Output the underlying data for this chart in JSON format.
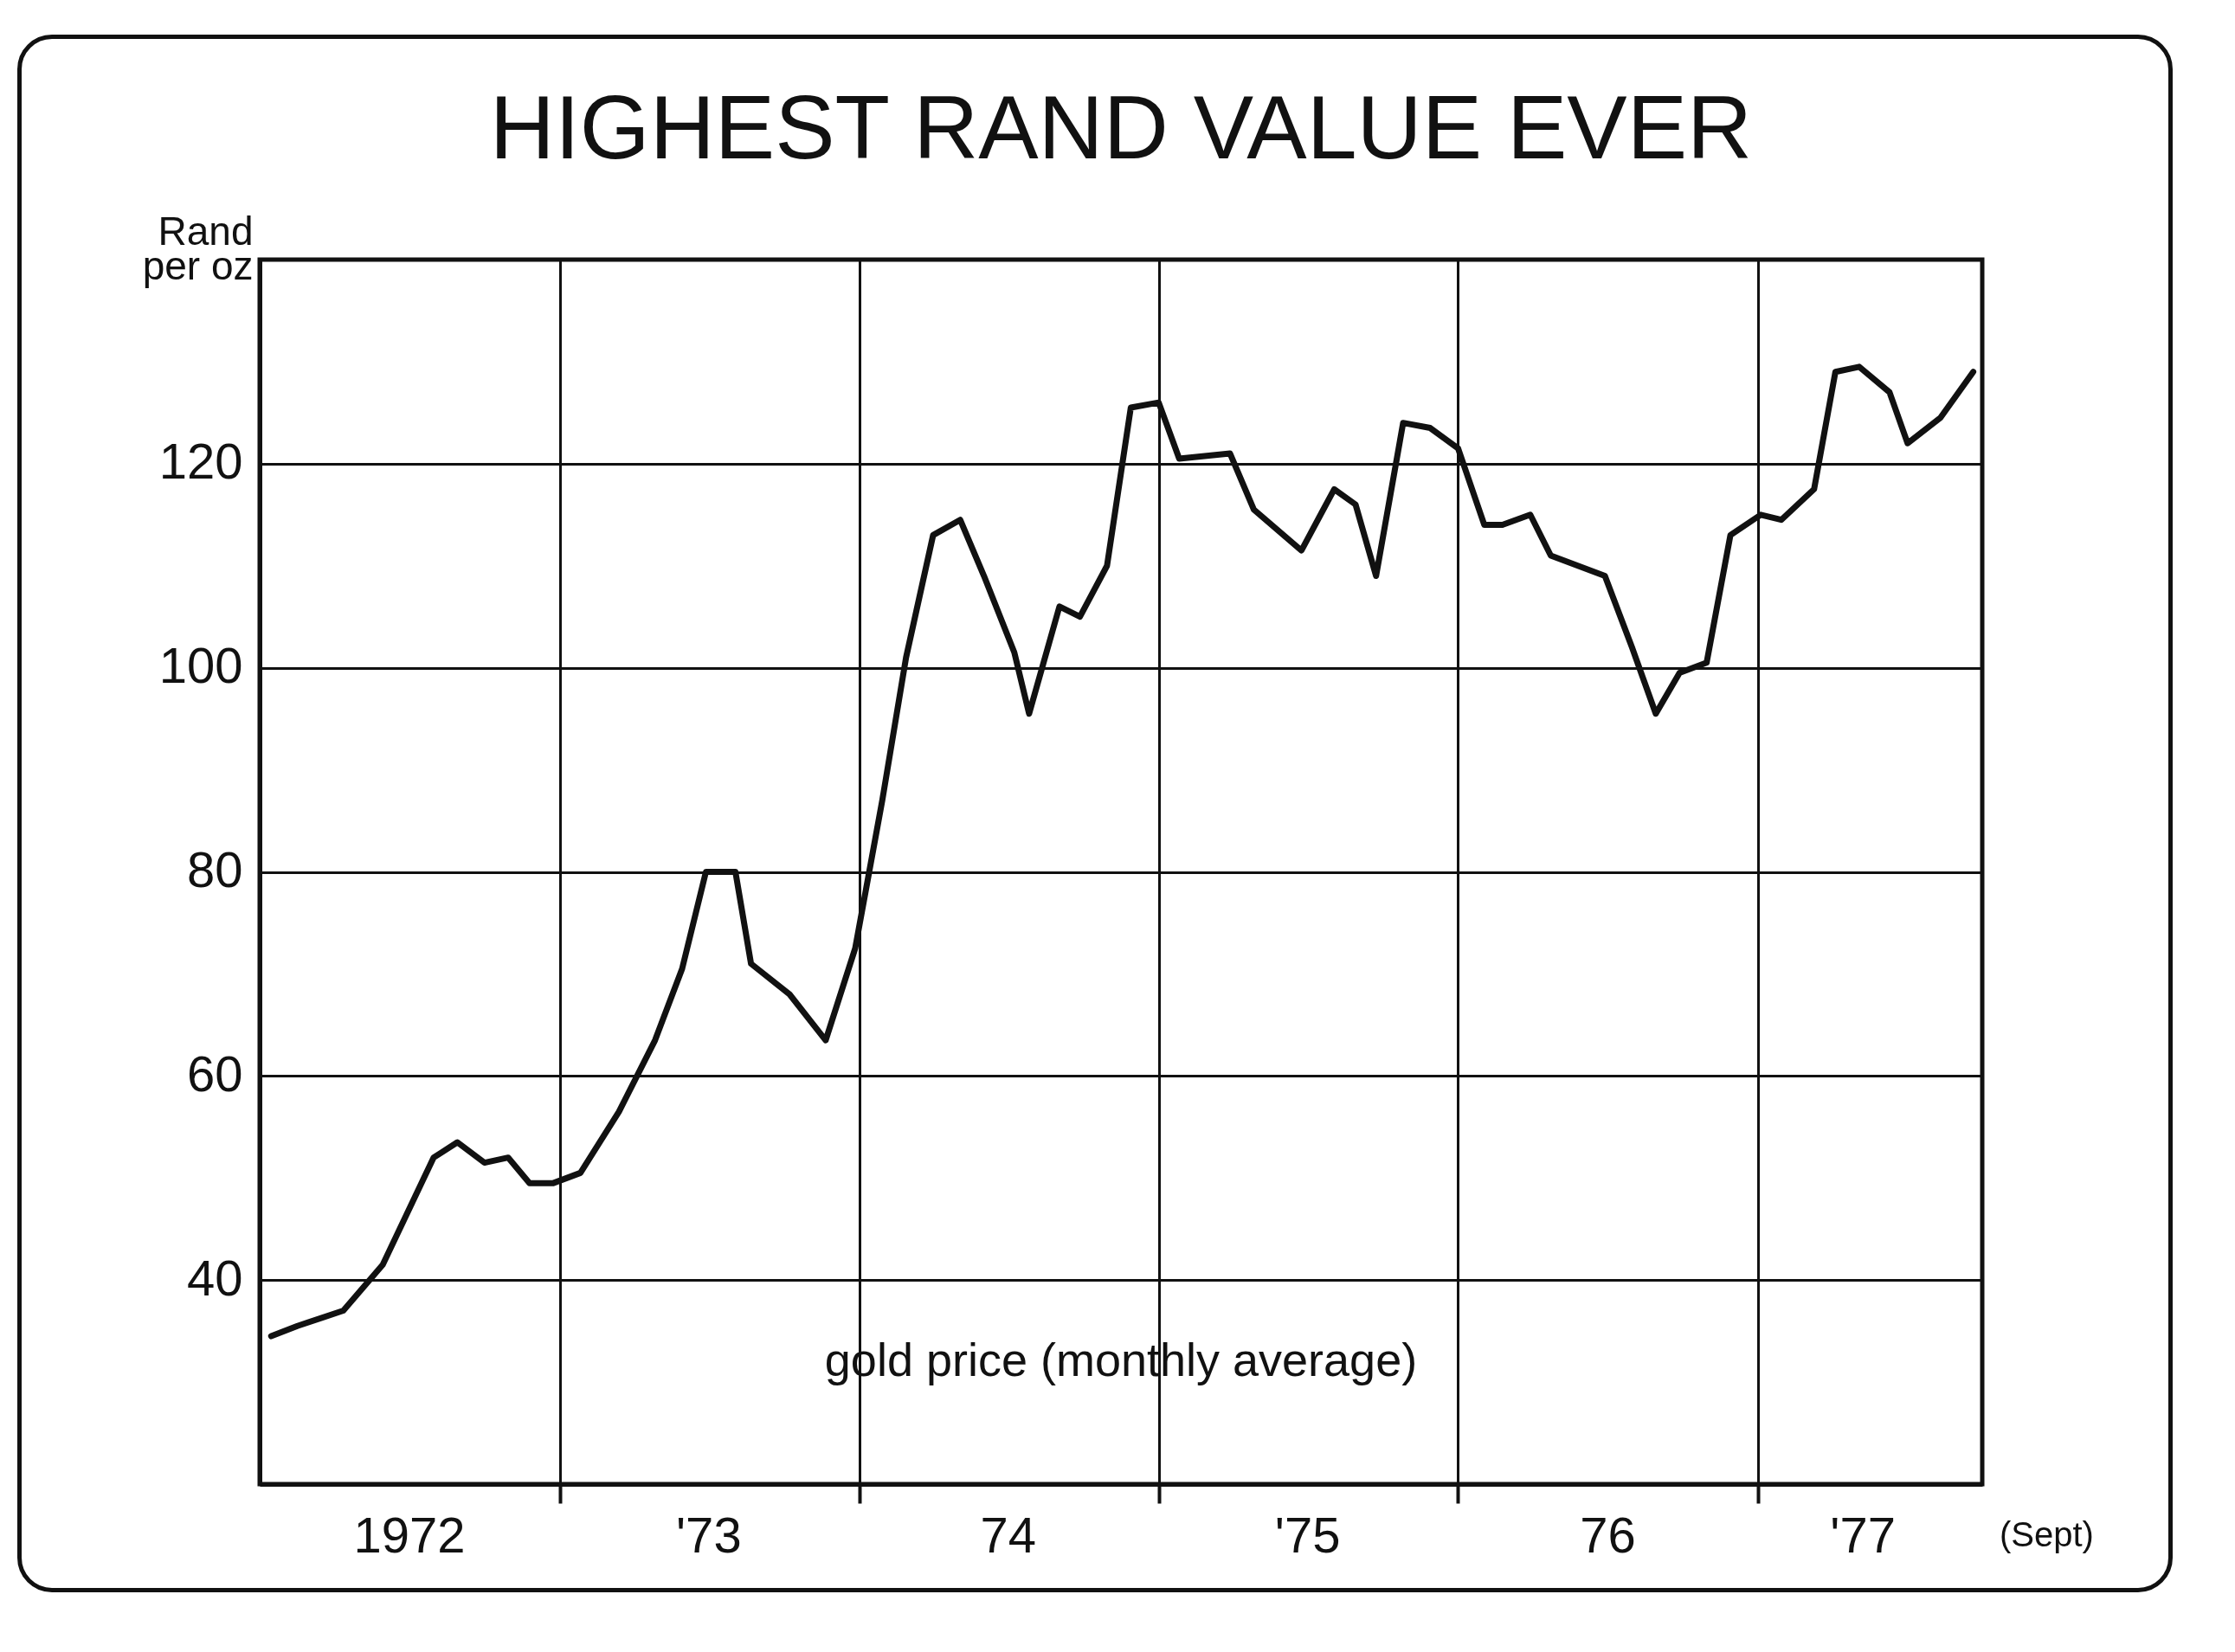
{
  "chart_data": {
    "type": "line",
    "title": "HIGHEST RAND VALUE EVER",
    "ylabel": "Rand per oz",
    "xlim": [
      "1972-01-01",
      "1977-10-01"
    ],
    "xticks": [
      {
        "value": "1972-07-01",
        "label": "1972"
      },
      {
        "value": "1973-01-01",
        "label": null
      },
      {
        "value": "1973-07-01",
        "label": "'73"
      },
      {
        "value": "1974-01-01",
        "label": null
      },
      {
        "value": "1974-07-01",
        "label": "74"
      },
      {
        "value": "1975-01-01",
        "label": null
      },
      {
        "value": "1975-07-01",
        "label": "'75"
      },
      {
        "value": "1976-01-01",
        "label": null
      },
      {
        "value": "1976-07-01",
        "label": "76"
      },
      {
        "value": "1977-01-01",
        "label": null
      },
      {
        "value": "1977-05-08",
        "label": "'77"
      }
    ],
    "ylim": [
      20,
      140
    ],
    "yticks": [
      40,
      60,
      80,
      100,
      120
    ],
    "grid": true,
    "annotations": [
      "(Sept)"
    ],
    "series": [
      {
        "name": "gold price (monthly average)",
        "color": "#111111",
        "x": [
          "1972-01-15",
          "1972-02-16",
          "1972-04-12",
          "1972-05-30",
          "1972-07-31",
          "1972-08-29",
          "1972-10-01",
          "1972-10-30",
          "1972-11-25",
          "1972-12-24",
          "1973-01-26",
          "1973-03-14",
          "1973-04-27",
          "1973-05-30",
          "1973-06-28",
          "1973-08-03",
          "1973-08-22",
          "1973-10-08",
          "1973-11-21",
          "1973-12-27",
          "1974-01-29",
          "1974-02-27",
          "1974-04-01",
          "1974-05-04",
          "1974-06-02",
          "1974-07-09",
          "1974-07-27",
          "1974-09-02",
          "1974-09-27",
          "1974-10-30",
          "1974-11-28",
          "1975-01-01",
          "1975-01-26",
          "1975-03-29",
          "1975-04-27",
          "1975-06-24",
          "1975-08-03",
          "1975-08-29",
          "1975-09-23",
          "1975-10-26",
          "1975-11-28",
          "1976-01-01",
          "1976-02-02",
          "1976-02-24",
          "1976-03-29",
          "1976-04-23",
          "1976-06-28",
          "1976-07-31",
          "1976-08-29",
          "1976-09-27",
          "1976-10-30",
          "1976-11-28",
          "1977-01-04",
          "1977-01-29",
          "1977-03-10",
          "1977-04-05",
          "1977-05-04",
          "1977-06-10",
          "1977-07-02",
          "1977-08-11",
          "1977-09-20"
        ],
        "values": [
          34.5,
          35.5,
          37,
          41.5,
          52,
          53.5,
          51.5,
          52,
          49.5,
          49.5,
          50.5,
          56.5,
          63.5,
          70.5,
          80,
          80,
          71,
          68,
          63.5,
          72.5,
          87,
          101,
          113,
          114.5,
          109,
          101.5,
          95.5,
          106,
          105,
          110,
          125.5,
          126,
          120.5,
          121,
          115.5,
          111.5,
          117.5,
          116,
          109,
          124,
          123.5,
          121.5,
          114,
          114,
          115,
          111,
          109,
          102,
          95.5,
          99.5,
          100.5,
          113,
          115,
          114.5,
          117.5,
          129,
          129.5,
          127,
          122,
          124.5,
          129
        ]
      }
    ]
  }
}
